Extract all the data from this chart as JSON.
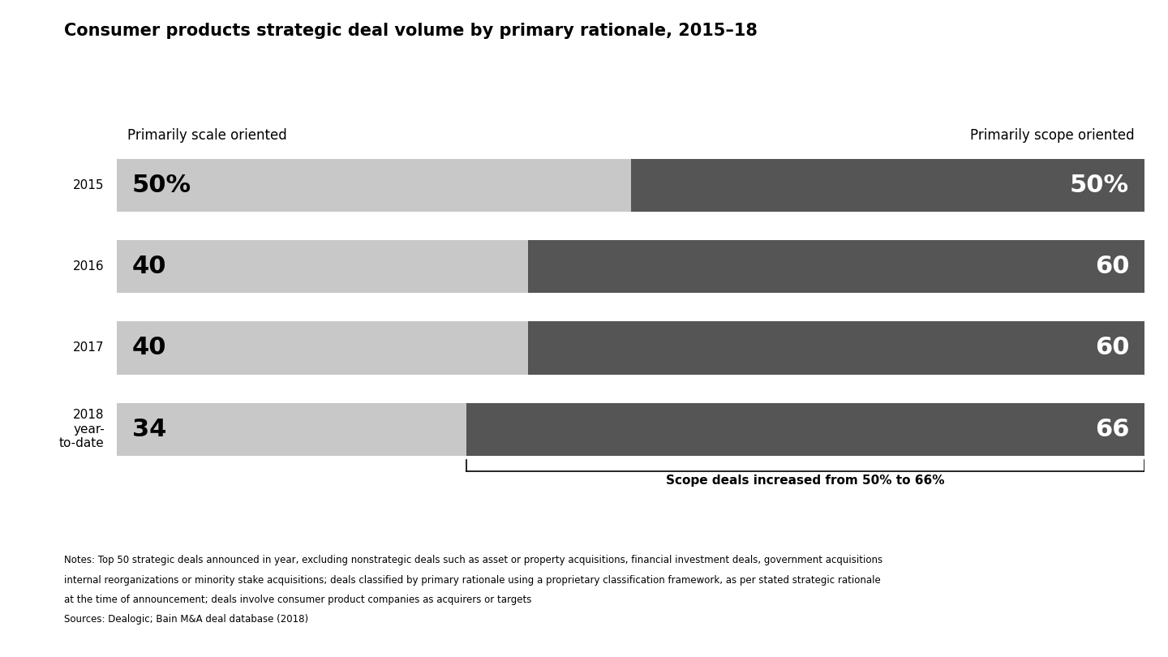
{
  "title": "Consumer products strategic deal volume by primary rationale, 2015–18",
  "years": [
    "2015",
    "2016",
    "2017",
    "2018\nyear-\nto-date"
  ],
  "scale_values": [
    50,
    40,
    40,
    34
  ],
  "scope_values": [
    50,
    60,
    60,
    66
  ],
  "scale_labels": [
    "50%",
    "40",
    "40",
    "34"
  ],
  "scope_labels": [
    "50%",
    "60",
    "60",
    "66"
  ],
  "scale_color": "#c8c8c8",
  "scope_color": "#555555",
  "scale_header": "Primarily scale oriented",
  "scope_header": "Primarily scope oriented",
  "annotation_text": "Scope deals increased from 50% to 66%",
  "notes_line1": "Notes: Top 50 strategic deals announced in year, excluding nonstrategic deals such as asset or property acquisitions, financial investment deals, government acquisitions",
  "notes_line2": "internal reorganizations or minority stake acquisitions; deals classified by primary rationale using a proprietary classification framework, as per stated strategic rationale",
  "notes_line3": "at the time of announcement; deals involve consumer product companies as acquirers or targets",
  "sources": "Sources: Dealogic; Bain M&A deal database (2018)",
  "figsize": [
    14.4,
    8.1
  ],
  "dpi": 100
}
